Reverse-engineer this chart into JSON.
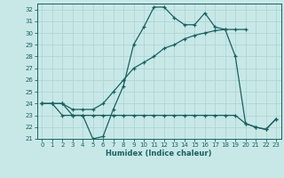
{
  "title": "",
  "xlabel": "Humidex (Indice chaleur)",
  "xlim": [
    -0.5,
    23.5
  ],
  "ylim": [
    21,
    32.5
  ],
  "yticks": [
    21,
    22,
    23,
    24,
    25,
    26,
    27,
    28,
    29,
    30,
    31,
    32
  ],
  "xticks": [
    0,
    1,
    2,
    3,
    4,
    5,
    6,
    7,
    8,
    9,
    10,
    11,
    12,
    13,
    14,
    15,
    16,
    17,
    18,
    19,
    20,
    21,
    22,
    23
  ],
  "bg_color": "#c8e8e8",
  "grid_color": "#b0d4d4",
  "line_color": "#1a6060",
  "series1_x": [
    0,
    1,
    2,
    3,
    4,
    5,
    6,
    7,
    8,
    9,
    10,
    11,
    12,
    13,
    14,
    15,
    16,
    17,
    18,
    19,
    20,
    21,
    22,
    23
  ],
  "series1_y": [
    24,
    24,
    24,
    23,
    23,
    21,
    21.2,
    23.5,
    25.5,
    29.0,
    30.5,
    32.2,
    32.2,
    31.3,
    30.7,
    30.7,
    31.7,
    30.5,
    30.3,
    28.0,
    22.3,
    22.0,
    21.8,
    22.7
  ],
  "series2_x": [
    0,
    1,
    2,
    3,
    4,
    5,
    6,
    7,
    8,
    9,
    10,
    11,
    12,
    13,
    14,
    15,
    16,
    17,
    18,
    19,
    20
  ],
  "series2_y": [
    24,
    24,
    24,
    23.5,
    23.5,
    23.5,
    24.0,
    25.0,
    26.0,
    27.0,
    27.5,
    28.0,
    28.7,
    29.0,
    29.5,
    29.8,
    30.0,
    30.2,
    30.3,
    30.3,
    30.3
  ],
  "series3_x": [
    0,
    1,
    2,
    3,
    4,
    5,
    6,
    7,
    8,
    9,
    10,
    11,
    12,
    13,
    14,
    15,
    16,
    17,
    18,
    19,
    20,
    21,
    22,
    23
  ],
  "series3_y": [
    24,
    24,
    23,
    23,
    23,
    23,
    23,
    23,
    23,
    23,
    23,
    23,
    23,
    23,
    23,
    23,
    23,
    23,
    23,
    23,
    22.3,
    22.0,
    21.8,
    22.7
  ]
}
